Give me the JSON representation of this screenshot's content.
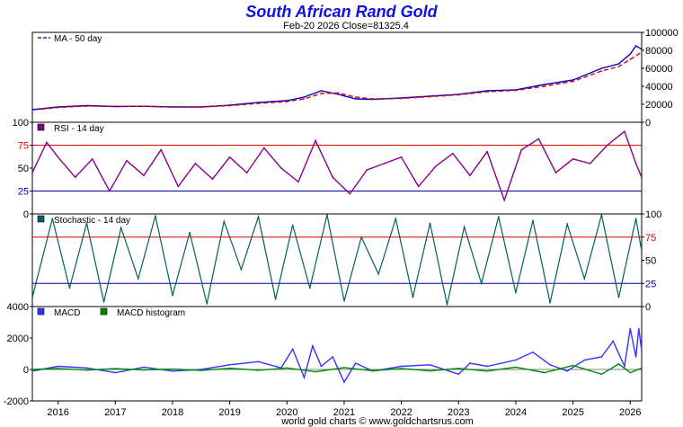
{
  "chart_data": {
    "type": "line",
    "title": "South African Rand Gold",
    "subtitle": "Feb-20  2026   Close=81325.4",
    "footer": "world gold charts © www.goldchartsrus.com",
    "x_axis": {
      "range": [
        2015.55,
        2026.2
      ],
      "tick_labels": [
        "2016",
        "2017",
        "2018",
        "2019",
        "2020",
        "2021",
        "2022",
        "2023",
        "2024",
        "2025",
        "2026"
      ]
    },
    "colors": {
      "title": "#1010e6",
      "price": "#0000cc",
      "ma": "#dd0000",
      "rsi": "#880088",
      "stoch": "#006060",
      "overbought": "#dd0000",
      "oversold": "#000099",
      "macd": "#3333ff",
      "macd_hist": "#008800",
      "axis": "#000000",
      "overbought_label": "#dd0000",
      "oversold_label": "#0000aa"
    },
    "panels": [
      {
        "name": "price",
        "axis_side": "right",
        "ylim": [
          0,
          100000
        ],
        "ticks": [
          "0",
          "20000",
          "40000",
          "60000",
          "80000",
          "100000"
        ],
        "legend": [
          "MA - 50 day"
        ],
        "series": [
          {
            "name": "price",
            "x": [
              2015.55,
              2016.0,
              2016.5,
              2017.0,
              2017.5,
              2018.0,
              2018.5,
              2019.0,
              2019.5,
              2020.0,
              2020.3,
              2020.6,
              2020.9,
              2021.2,
              2021.5,
              2022.0,
              2022.5,
              2023.0,
              2023.5,
              2024.0,
              2024.5,
              2025.0,
              2025.5,
              2025.8,
              2026.0,
              2026.1,
              2026.2
            ],
            "y": [
              14000,
              17000,
              18500,
              17500,
              17800,
              17000,
              17000,
              19000,
              22000,
              24000,
              28000,
              35000,
              31000,
              26000,
              25500,
              27000,
              29000,
              31000,
              35000,
              36000,
              42000,
              47000,
              60000,
              65000,
              76000,
              85000,
              81325
            ]
          },
          {
            "name": "MA - 50 day",
            "x": [
              2015.7,
              2016.0,
              2016.5,
              2017.0,
              2017.5,
              2018.0,
              2018.5,
              2019.0,
              2019.5,
              2020.0,
              2020.3,
              2020.6,
              2020.9,
              2021.2,
              2021.5,
              2022.0,
              2022.5,
              2023.0,
              2023.5,
              2024.0,
              2024.5,
              2025.0,
              2025.5,
              2025.8,
              2026.0,
              2026.2
            ],
            "y": [
              14500,
              16500,
              18000,
              17800,
              17600,
              17200,
              17000,
              18500,
              21000,
              23000,
              26000,
              32000,
              32500,
              28000,
              26000,
              26500,
              28500,
              30500,
              34000,
              35500,
              40000,
              45500,
              57000,
              62000,
              70000,
              78000
            ]
          }
        ]
      },
      {
        "name": "rsi",
        "axis_side": "left",
        "ylim": [
          0,
          100
        ],
        "ticks": [
          "0",
          "25",
          "50",
          "75",
          "100"
        ],
        "levels": [
          25,
          75
        ],
        "legend": [
          "RSI - 14 day"
        ],
        "series": [
          {
            "name": "RSI - 14 day",
            "x": [
              2015.55,
              2015.8,
              2016.0,
              2016.3,
              2016.6,
              2016.9,
              2017.2,
              2017.5,
              2017.8,
              2018.1,
              2018.4,
              2018.7,
              2019.0,
              2019.3,
              2019.6,
              2019.9,
              2020.2,
              2020.5,
              2020.8,
              2021.1,
              2021.4,
              2021.7,
              2022.0,
              2022.3,
              2022.6,
              2022.9,
              2023.2,
              2023.5,
              2023.8,
              2024.1,
              2024.4,
              2024.7,
              2025.0,
              2025.3,
              2025.6,
              2025.9,
              2026.1,
              2026.2
            ],
            "y": [
              45,
              78,
              62,
              40,
              60,
              25,
              58,
              42,
              70,
              30,
              55,
              38,
              62,
              45,
              72,
              50,
              35,
              80,
              40,
              22,
              48,
              55,
              62,
              30,
              52,
              66,
              42,
              68,
              15,
              70,
              82,
              45,
              60,
              55,
              75,
              90,
              55,
              40
            ]
          }
        ]
      },
      {
        "name": "stochastic",
        "axis_side": "right",
        "ylim": [
          0,
          100
        ],
        "ticks": [
          "0",
          "25",
          "50",
          "75",
          "100"
        ],
        "levels": [
          25,
          75
        ],
        "legend": [
          "Stochastic - 14 day"
        ],
        "series": [
          {
            "name": "Stochastic - 14 day",
            "x": [
              2015.55,
              2015.9,
              2016.2,
              2016.5,
              2016.8,
              2017.1,
              2017.4,
              2017.7,
              2018.0,
              2018.3,
              2018.6,
              2018.9,
              2019.2,
              2019.5,
              2019.8,
              2020.1,
              2020.4,
              2020.7,
              2021.0,
              2021.3,
              2021.6,
              2021.9,
              2022.2,
              2022.5,
              2022.8,
              2023.1,
              2023.4,
              2023.7,
              2024.0,
              2024.3,
              2024.6,
              2024.9,
              2025.2,
              2025.5,
              2025.8,
              2026.1,
              2026.2
            ],
            "y": [
              10,
              95,
              20,
              90,
              5,
              85,
              30,
              98,
              12,
              80,
              3,
              92,
              40,
              97,
              8,
              88,
              20,
              99,
              6,
              75,
              35,
              95,
              10,
              90,
              2,
              86,
              25,
              97,
              15,
              93,
              4,
              89,
              30,
              99,
              10,
              95,
              60
            ]
          }
        ]
      },
      {
        "name": "macd",
        "axis_side": "left",
        "ylim": [
          -2000,
          4000
        ],
        "ticks": [
          "-2000",
          "0",
          "2000",
          "4000"
        ],
        "legend": [
          "MACD",
          "MACD histogram"
        ],
        "series": [
          {
            "name": "MACD",
            "x": [
              2015.55,
              2016.0,
              2016.5,
              2017.0,
              2017.5,
              2018.0,
              2018.5,
              2019.0,
              2019.5,
              2019.9,
              2020.1,
              2020.3,
              2020.45,
              2020.6,
              2020.8,
              2021.0,
              2021.2,
              2021.5,
              2022.0,
              2022.5,
              2023.0,
              2023.2,
              2023.5,
              2024.0,
              2024.3,
              2024.6,
              2024.9,
              2025.2,
              2025.5,
              2025.7,
              2025.9,
              2026.0,
              2026.1,
              2026.15,
              2026.2
            ],
            "y": [
              -100,
              200,
              100,
              -200,
              150,
              -100,
              0,
              300,
              500,
              100,
              1300,
              -500,
              1500,
              200,
              800,
              -800,
              400,
              -100,
              200,
              300,
              -300,
              400,
              200,
              600,
              1100,
              300,
              -100,
              600,
              800,
              1800,
              200,
              2600,
              800,
              2600,
              1200
            ]
          },
          {
            "name": "MACD histogram",
            "x": [
              2015.55,
              2016.0,
              2016.5,
              2017.0,
              2017.5,
              2018.0,
              2018.5,
              2019.0,
              2019.5,
              2020.0,
              2020.5,
              2021.0,
              2021.5,
              2022.0,
              2022.5,
              2023.0,
              2023.5,
              2024.0,
              2024.5,
              2025.0,
              2025.5,
              2025.8,
              2026.0,
              2026.2
            ],
            "y": [
              0,
              60,
              -40,
              50,
              -30,
              20,
              -60,
              80,
              -50,
              100,
              -150,
              120,
              -80,
              60,
              -90,
              70,
              -100,
              150,
              -200,
              250,
              -300,
              350,
              -200,
              100
            ]
          }
        ]
      }
    ]
  }
}
